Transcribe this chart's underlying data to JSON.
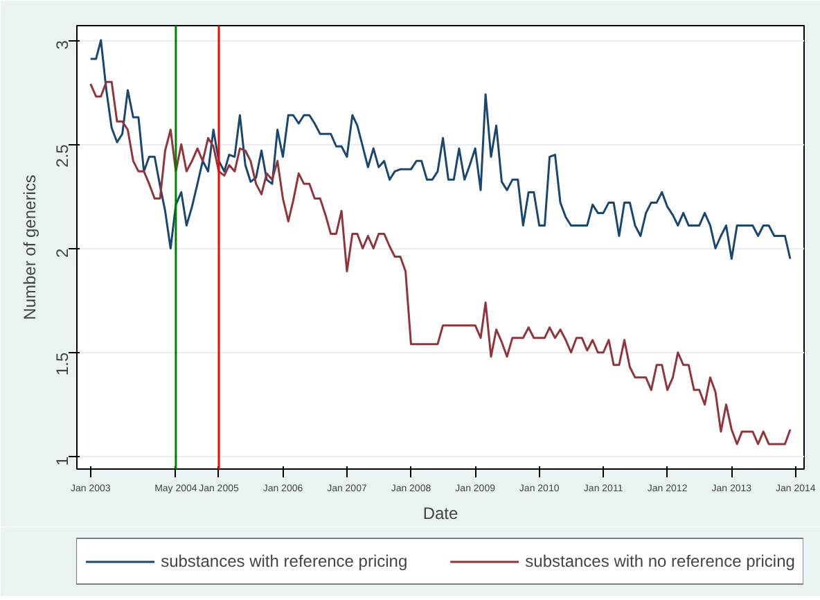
{
  "chart_data": {
    "type": "line",
    "xlabel": "Date",
    "ylabel": "Number of generics",
    "x": [
      "2003-01",
      "2003-02",
      "2003-03",
      "2003-04",
      "2003-05",
      "2003-06",
      "2003-07",
      "2003-08",
      "2003-09",
      "2003-10",
      "2003-11",
      "2003-12",
      "2004-01",
      "2004-02",
      "2004-03",
      "2004-04",
      "2004-05",
      "2004-06",
      "2004-07",
      "2004-08",
      "2004-09",
      "2004-10",
      "2004-11",
      "2004-12",
      "2005-01",
      "2005-02",
      "2005-03",
      "2005-04",
      "2005-05",
      "2005-06",
      "2005-07",
      "2005-08",
      "2005-09",
      "2005-10",
      "2005-11",
      "2005-12",
      "2006-01",
      "2006-02",
      "2006-03",
      "2006-04",
      "2006-05",
      "2006-06",
      "2006-07",
      "2006-08",
      "2006-09",
      "2006-10",
      "2006-11",
      "2006-12",
      "2007-01",
      "2007-02",
      "2007-03",
      "2007-04",
      "2007-05",
      "2007-06",
      "2007-07",
      "2007-08",
      "2007-09",
      "2007-10",
      "2007-11",
      "2007-12",
      "2008-01",
      "2008-02",
      "2008-03",
      "2008-04",
      "2008-05",
      "2008-06",
      "2008-07",
      "2008-08",
      "2008-09",
      "2008-10",
      "2008-11",
      "2008-12",
      "2009-01",
      "2009-02",
      "2009-03",
      "2009-04",
      "2009-05",
      "2009-06",
      "2009-07",
      "2009-08",
      "2009-09",
      "2009-10",
      "2009-11",
      "2009-12",
      "2010-01",
      "2010-02",
      "2010-03",
      "2010-04",
      "2010-05",
      "2010-06",
      "2010-07",
      "2010-08",
      "2010-09",
      "2010-10",
      "2010-11",
      "2010-12",
      "2011-01",
      "2011-02",
      "2011-03",
      "2011-04",
      "2011-05",
      "2011-06",
      "2011-07",
      "2011-08",
      "2011-09",
      "2011-10",
      "2011-11",
      "2011-12",
      "2012-01",
      "2012-02",
      "2012-03",
      "2012-04",
      "2012-05",
      "2012-06",
      "2012-07",
      "2012-08",
      "2012-09",
      "2012-10",
      "2012-11",
      "2012-12",
      "2013-01",
      "2013-02",
      "2013-03",
      "2013-04",
      "2013-05",
      "2013-06",
      "2013-07",
      "2013-08",
      "2013-09",
      "2013-10",
      "2013-11",
      "2013-12"
    ],
    "series": [
      {
        "name": "substances with reference pricing",
        "color": "#1a476f",
        "values": [
          2.91,
          2.91,
          3.0,
          2.76,
          2.58,
          2.51,
          2.55,
          2.76,
          2.63,
          2.63,
          2.37,
          2.44,
          2.44,
          2.3,
          2.18,
          2.0,
          2.21,
          2.27,
          2.11,
          2.2,
          2.31,
          2.42,
          2.37,
          2.57,
          2.42,
          2.37,
          2.45,
          2.44,
          2.64,
          2.4,
          2.32,
          2.34,
          2.47,
          2.33,
          2.31,
          2.57,
          2.44,
          2.64,
          2.64,
          2.6,
          2.64,
          2.64,
          2.6,
          2.55,
          2.55,
          2.55,
          2.49,
          2.49,
          2.44,
          2.64,
          2.59,
          2.49,
          2.39,
          2.48,
          2.39,
          2.42,
          2.33,
          2.37,
          2.38,
          2.38,
          2.38,
          2.42,
          2.42,
          2.33,
          2.33,
          2.37,
          2.53,
          2.33,
          2.33,
          2.48,
          2.33,
          2.4,
          2.48,
          2.28,
          2.74,
          2.44,
          2.59,
          2.32,
          2.28,
          2.33,
          2.33,
          2.11,
          2.27,
          2.27,
          2.11,
          2.11,
          2.44,
          2.45,
          2.22,
          2.15,
          2.11,
          2.11,
          2.11,
          2.11,
          2.21,
          2.17,
          2.17,
          2.22,
          2.22,
          2.06,
          2.22,
          2.22,
          2.11,
          2.06,
          2.17,
          2.22,
          2.22,
          2.27,
          2.2,
          2.16,
          2.11,
          2.17,
          2.11,
          2.11,
          2.11,
          2.17,
          2.11,
          2.0,
          2.06,
          2.11,
          1.95,
          2.11,
          2.11,
          2.11,
          2.11,
          2.06,
          2.11,
          2.11,
          2.06,
          2.06,
          2.06,
          1.95
        ]
      },
      {
        "name": "substances with no reference pricing",
        "color": "#90353b",
        "values": [
          2.79,
          2.73,
          2.73,
          2.8,
          2.8,
          2.61,
          2.61,
          2.57,
          2.42,
          2.37,
          2.37,
          2.31,
          2.24,
          2.24,
          2.47,
          2.57,
          2.37,
          2.5,
          2.37,
          2.42,
          2.48,
          2.42,
          2.53,
          2.49,
          2.37,
          2.35,
          2.4,
          2.37,
          2.48,
          2.47,
          2.42,
          2.31,
          2.26,
          2.36,
          2.33,
          2.42,
          2.24,
          2.13,
          2.23,
          2.36,
          2.31,
          2.31,
          2.24,
          2.24,
          2.16,
          2.07,
          2.07,
          2.18,
          1.89,
          2.07,
          2.07,
          2.0,
          2.06,
          2.0,
          2.07,
          2.07,
          2.01,
          1.96,
          1.96,
          1.89,
          1.54,
          1.54,
          1.54,
          1.54,
          1.54,
          1.54,
          1.63,
          1.63,
          1.63,
          1.63,
          1.63,
          1.63,
          1.63,
          1.57,
          1.74,
          1.48,
          1.61,
          1.55,
          1.48,
          1.57,
          1.57,
          1.57,
          1.62,
          1.57,
          1.57,
          1.57,
          1.62,
          1.57,
          1.61,
          1.56,
          1.5,
          1.57,
          1.57,
          1.51,
          1.56,
          1.5,
          1.5,
          1.56,
          1.44,
          1.44,
          1.56,
          1.43,
          1.38,
          1.38,
          1.38,
          1.32,
          1.44,
          1.44,
          1.32,
          1.38,
          1.5,
          1.44,
          1.44,
          1.32,
          1.32,
          1.25,
          1.38,
          1.31,
          1.12,
          1.25,
          1.13,
          1.06,
          1.12,
          1.12,
          1.12,
          1.06,
          1.12,
          1.06,
          1.06,
          1.06,
          1.06,
          1.13
        ]
      }
    ],
    "xlim": [
      "2002-10-15",
      "2014-02-18"
    ],
    "xticks": [
      {
        "value": "2003-01",
        "label": "Jan 2003"
      },
      {
        "value": "2004-05",
        "label": "May 2004"
      },
      {
        "value": "2005-01",
        "label": "Jan 2005"
      },
      {
        "value": "2006-01",
        "label": "Jan 2006"
      },
      {
        "value": "2007-01",
        "label": "Jan 2007"
      },
      {
        "value": "2008-01",
        "label": "Jan 2008"
      },
      {
        "value": "2009-01",
        "label": "Jan 2009"
      },
      {
        "value": "2010-01",
        "label": "Jan 2010"
      },
      {
        "value": "2011-01",
        "label": "Jan 2011"
      },
      {
        "value": "2012-01",
        "label": "Jan 2012"
      },
      {
        "value": "2013-01",
        "label": "Jan 2013"
      },
      {
        "value": "2014-01",
        "label": "Jan 2014"
      }
    ],
    "ylim": [
      0.94,
      3.07
    ],
    "yticks": [
      1,
      1.5,
      2,
      2.5,
      3
    ],
    "ref_lines": [
      {
        "axis": "x",
        "value": "2004-05",
        "label": null,
        "color": "#008000"
      },
      {
        "axis": "x",
        "value": "2005-01",
        "label": null,
        "color": "#ff0000"
      }
    ],
    "grid": "y",
    "legend": "bottom",
    "marker": "none",
    "line_style": "solid"
  }
}
